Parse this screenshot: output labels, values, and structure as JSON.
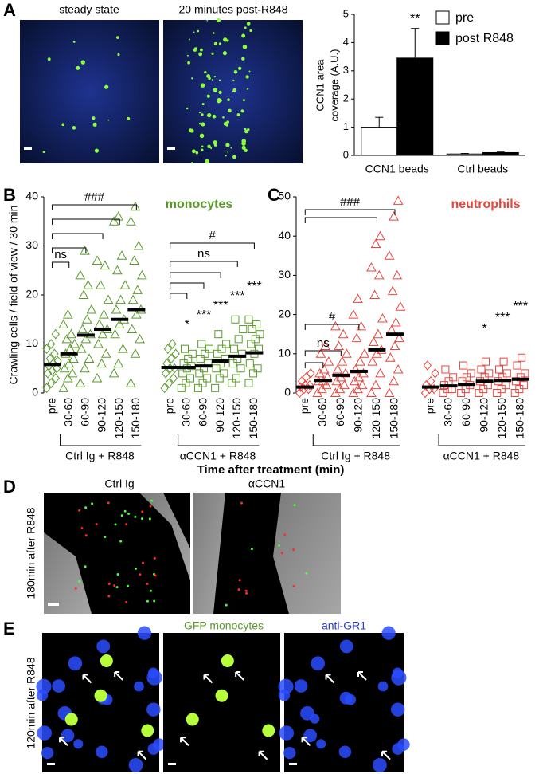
{
  "labels": {
    "panel_letters": [
      "A",
      "B",
      "C",
      "D",
      "E"
    ],
    "a_images": [
      "steady state",
      "20 minutes post-R848"
    ],
    "d_images": [
      "Ctrl Ig",
      "αCCN1"
    ],
    "d_side": "180min after R848",
    "e_images": [
      "GFP monocytes",
      "anti-GR1"
    ],
    "e_side": "120min after R848"
  },
  "chart_data": [
    {
      "type": "bar",
      "ylabel": [
        "CCN1 area",
        "coverage (A.U.)"
      ],
      "categories": [
        "CCN1 beads",
        "Ctrl beads"
      ],
      "series": [
        {
          "name": "pre",
          "color": "#ffffff",
          "values": [
            1,
            0.05
          ],
          "errors": [
            0.35,
            0.02
          ]
        },
        {
          "name": "post R848",
          "color": "#000000",
          "values": [
            3.45,
            0.1
          ],
          "errors": [
            1.05,
            0.02
          ]
        }
      ],
      "ylim": [
        0,
        5
      ],
      "yticks": [
        0,
        1,
        2,
        3,
        4,
        5
      ],
      "annotations": [
        "**"
      ]
    },
    {
      "type": "strip",
      "title": "monocytes",
      "color": "#5a9a2a",
      "ylabel": "Crawling cells / field of view / 30 min",
      "xlabel": "Time after treatment (min)",
      "ylim": [
        0,
        40
      ],
      "yticks": [
        0,
        10,
        20,
        30,
        40
      ],
      "annotations": [
        "###",
        "ns",
        "#",
        "ns"
      ],
      "groups": [
        {
          "name": "Ctrl Ig + R848",
          "categories": [
            "pre",
            "30-60",
            "60-90",
            "90-120",
            "120-150",
            "150-180"
          ],
          "markers": [
            "diamond",
            "triangle",
            "triangle",
            "triangle",
            "triangle",
            "triangle"
          ],
          "medians": [
            5.8,
            8,
            11.8,
            13,
            15,
            17
          ],
          "points": [
            [
              1,
              2,
              3,
              4,
              4.5,
              5,
              5.5,
              6,
              6.5,
              7,
              8,
              9,
              10,
              12
            ],
            [
              1,
              3,
              4,
              5,
              6,
              7,
              8,
              9,
              10,
              11,
              12,
              14,
              16
            ],
            [
              2,
              5,
              7,
              9,
              11,
              12,
              13,
              15,
              17,
              20,
              22,
              24,
              29
            ],
            [
              3,
              6,
              8,
              10,
              12,
              13,
              14,
              16,
              19,
              22,
              26,
              27
            ],
            [
              4,
              6,
              9,
              12,
              14,
              15,
              17,
              19,
              22,
              25,
              28,
              35,
              36
            ],
            [
              2,
              8,
              11,
              13,
              16,
              17,
              19,
              21,
              24,
              27,
              30,
              35,
              38
            ]
          ]
        },
        {
          "name": "αCCN1 + R848",
          "categories": [
            "pre",
            "30-60",
            "60-90",
            "90-120",
            "120-150",
            "150-180"
          ],
          "markers": [
            "diamond",
            "square",
            "square",
            "square",
            "square",
            "square"
          ],
          "medians": [
            5.2,
            5.2,
            5.5,
            6.5,
            7.5,
            8.2
          ],
          "stars": [
            null,
            "*",
            "***",
            "***",
            "***",
            "***"
          ],
          "points": [
            [
              1,
              2,
              3,
              4,
              5,
              5,
              6,
              7,
              8,
              9,
              10
            ],
            [
              1,
              2,
              3,
              4,
              5,
              5.5,
              6,
              7,
              8,
              9
            ],
            [
              1,
              2,
              3,
              4,
              5,
              6,
              7,
              8,
              9,
              10
            ],
            [
              1,
              3,
              4,
              5,
              6,
              7,
              8,
              9,
              10,
              12
            ],
            [
              2,
              3,
              5,
              6,
              7,
              8,
              9,
              11,
              13,
              15
            ],
            [
              2,
              4,
              5,
              6,
              8,
              9,
              10,
              11,
              12,
              13,
              14,
              15
            ]
          ]
        }
      ]
    },
    {
      "type": "strip",
      "title": "neutrophils",
      "color": "#e8453c",
      "ylim": [
        0,
        50
      ],
      "yticks": [
        0,
        10,
        20,
        30,
        40,
        50
      ],
      "annotations": [
        "###",
        "#",
        "ns"
      ],
      "groups": [
        {
          "name": "Ctrl Ig + R848",
          "categories": [
            "pre",
            "30-60",
            "60-90",
            "90-120",
            "120-150",
            "150-180"
          ],
          "markers": [
            "diamond",
            "triangle",
            "triangle",
            "triangle",
            "triangle",
            "triangle"
          ],
          "medians": [
            1.5,
            3.2,
            4.5,
            5.5,
            11,
            15
          ],
          "points": [
            [
              0,
              1,
              1,
              1.5,
              2,
              2,
              3,
              4,
              5
            ],
            [
              0,
              1,
              2,
              3,
              3,
              4,
              5,
              6,
              8,
              10,
              12
            ],
            [
              0,
              1,
              2,
              3,
              4,
              5,
              6,
              8,
              10,
              12,
              15,
              17
            ],
            [
              0,
              1,
              2,
              3,
              4,
              5,
              6,
              8,
              10,
              14,
              17,
              20,
              24
            ],
            [
              0,
              2,
              5,
              8,
              10,
              11,
              13,
              15,
              19,
              25,
              30,
              32,
              38,
              40
            ],
            [
              0,
              3,
              6,
              9,
              12,
              14,
              16,
              18,
              22,
              26,
              30,
              35,
              45,
              49
            ]
          ]
        },
        {
          "name": "αCCN1 + R848",
          "categories": [
            "pre",
            "30-60",
            "60-90",
            "90-120",
            "120-150",
            "150-180"
          ],
          "markers": [
            "diamond",
            "square",
            "square",
            "square",
            "square",
            "square"
          ],
          "medians": [
            1.5,
            1.8,
            2.2,
            3,
            3.2,
            3.5
          ],
          "stars": [
            null,
            null,
            null,
            "*",
            "***",
            "***"
          ],
          "points": [
            [
              0,
              1,
              1,
              2,
              3,
              5,
              7
            ],
            [
              0,
              1,
              1,
              2,
              3,
              4,
              6
            ],
            [
              0,
              1,
              2,
              3,
              4,
              5,
              7
            ],
            [
              0,
              1,
              2,
              3,
              4,
              5,
              6,
              8
            ],
            [
              0,
              1,
              2,
              3,
              4,
              5,
              6,
              8
            ],
            [
              0,
              1,
              2,
              3,
              4,
              5,
              7,
              9
            ]
          ]
        }
      ]
    }
  ]
}
